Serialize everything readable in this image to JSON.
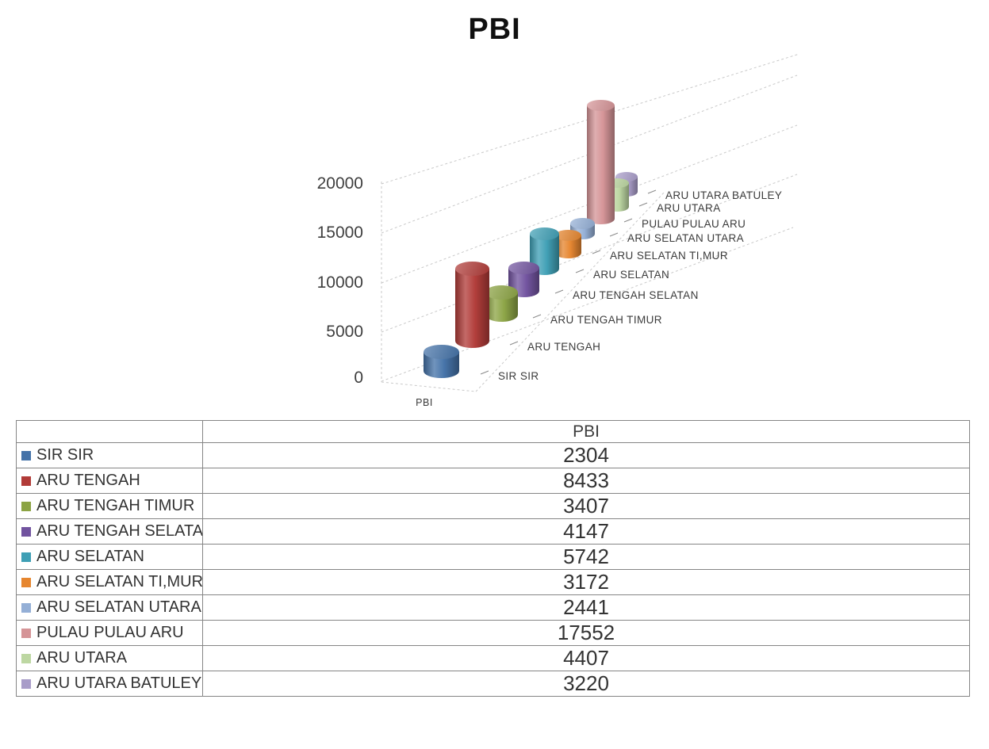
{
  "title": "PBI",
  "chart_data": {
    "type": "bar",
    "variant": "3d-cylinder",
    "title": "PBI",
    "series_name": "PBI",
    "x_axis_label": "PBI",
    "categories": [
      "SIR SIR",
      "ARU TENGAH",
      "ARU TENGAH TIMUR",
      "ARU TENGAH SELATAN",
      "ARU SELATAN",
      "ARU SELATAN TI,MUR",
      "ARU SELATAN UTARA",
      "PULAU PULAU ARU",
      "ARU UTARA",
      "ARU UTARA BATULEY"
    ],
    "values": [
      2304,
      8433,
      3407,
      4147,
      5742,
      3172,
      2441,
      17552,
      4407,
      3220
    ],
    "colors": [
      "#4472A8",
      "#B13B38",
      "#8CA444",
      "#71539F",
      "#3E9FB5",
      "#E6862F",
      "#94AFD6",
      "#D59497",
      "#BDD7A2",
      "#A99DC9"
    ],
    "ylim": [
      0,
      20000
    ],
    "yticks": [
      0,
      5000,
      10000,
      15000,
      20000
    ],
    "grid": "dashed-gray",
    "legend_position": "table-below"
  },
  "table": {
    "header": "PBI"
  },
  "ui": {
    "grid_color": "#c9c9c9",
    "tick_color": "#8a8a8a"
  }
}
